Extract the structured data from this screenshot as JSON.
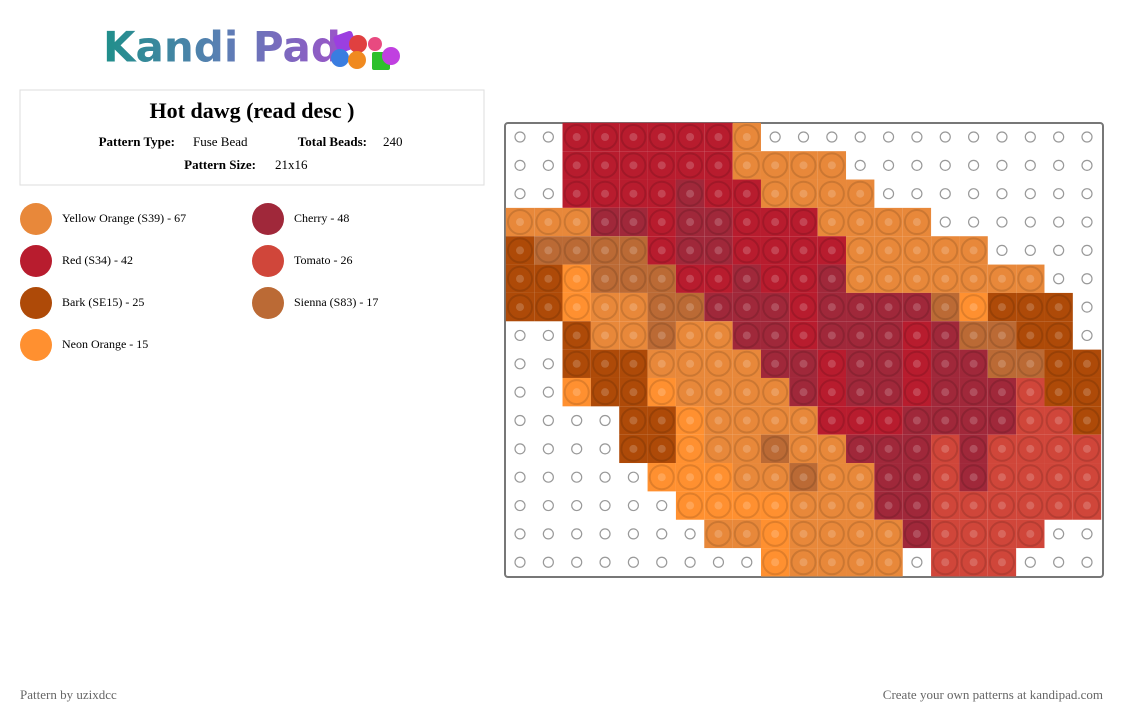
{
  "logo": "Kandi Pad",
  "header": {
    "title": "Hot dawg (read desc )",
    "type_label": "Pattern Type:",
    "type_value": "Fuse Bead",
    "beads_label": "Total Beads:",
    "beads_value": "240",
    "size_label": "Pattern Size:",
    "size_value": "21x16"
  },
  "legend": [
    {
      "label": "Yellow Orange (S39) - 67",
      "color": "#e8883a"
    },
    {
      "label": "Cherry - 48",
      "color": "#a0283a"
    },
    {
      "label": "Red (S34) - 42",
      "color": "#b81c2e"
    },
    {
      "label": "Tomato - 26",
      "color": "#d0463a"
    },
    {
      "label": "Bark (SE15) - 25",
      "color": "#ae4a08"
    },
    {
      "label": "Sienna (S83) - 17",
      "color": "#bb6a35"
    },
    {
      "label": "Neon Orange - 15",
      "color": "#ff9030"
    }
  ],
  "pattern": {
    "rows": [
      "..2222220............",
      "..2222220000.........",
      "..22221220000........",
      "000112112220000......",
      "45555211222200000....",
      "4465552212210000000..",
      "44600551112111156444.",
      "..400500112111215544.",
      "..4440000112112115544",
      "..6446000012112111344",
      "....44600002221111334",
      "....44600500111313333",
      ".....6660050011313333",
      "......666600011333333",
      ".......006000013333..",
      ".........60000.333..."
    ]
  },
  "footer": {
    "left": "Pattern by uzixdcc",
    "right": "Create your own patterns at kandipad.com"
  }
}
